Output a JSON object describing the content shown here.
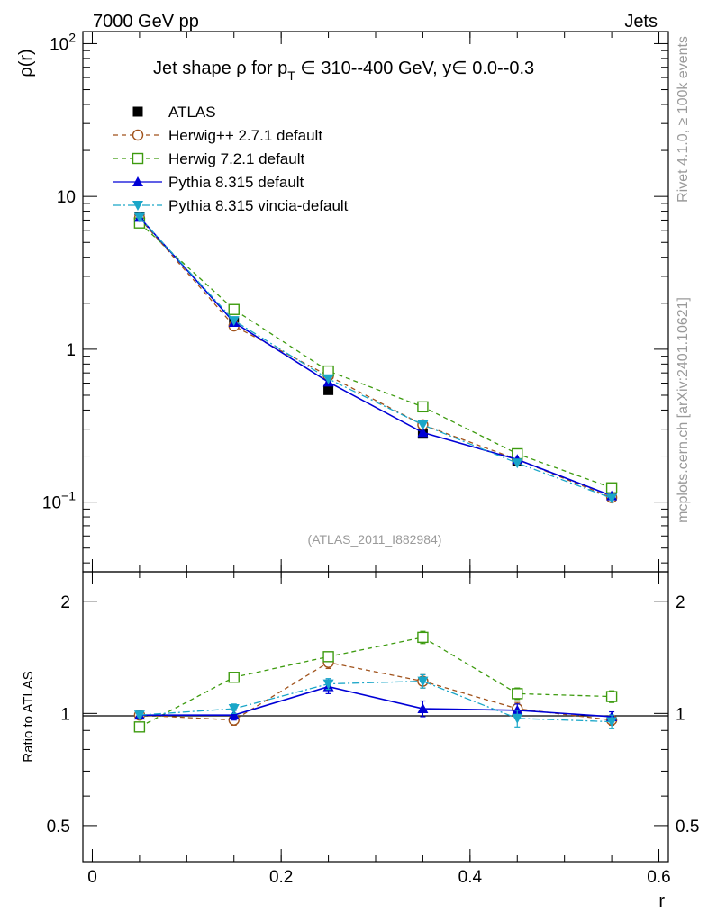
{
  "header": {
    "left": "7000 GeV pp",
    "right": "Jets"
  },
  "side_labels": {
    "rivet": "Rivet 4.1.0, ≥ 100k events",
    "mcplots": "mcplots.cern.ch [arXiv:2401.10621]"
  },
  "chart_data": [
    {
      "type": "line",
      "role": "main",
      "title_parts": {
        "prefix": "Jet shape ρ for p",
        "sub": "T",
        "suffix": " ∈ 310--400 GeV, y∈ 0.0--0.3"
      },
      "xlabel": "r",
      "ylabel": "ρ(r)",
      "yscale": "log",
      "ylim": [
        0.035,
        120
      ],
      "xlim": [
        -0.01,
        0.61
      ],
      "watermark": "(ATLAS_2011_I882984)",
      "y_tick_labels": [
        {
          "value": 0.1,
          "base": "10",
          "exp": "−1"
        },
        {
          "value": 1,
          "base": "1",
          "exp": ""
        },
        {
          "value": 10,
          "base": "10",
          "exp": ""
        },
        {
          "value": 100,
          "base": "10",
          "exp": "2"
        }
      ],
      "x": [
        0.05,
        0.15,
        0.25,
        0.35,
        0.45,
        0.55
      ],
      "series": [
        {
          "name": "ATLAS",
          "color": "#000000",
          "marker": "square-filled",
          "line": "none",
          "values": [
            7.3,
            1.5,
            0.54,
            0.28,
            0.185,
            0.112
          ]
        },
        {
          "name": "Herwig++ 2.7.1 default",
          "color": "#a0521b",
          "marker": "circle-open",
          "line": "dashed",
          "values": [
            7.2,
            1.42,
            0.67,
            0.32,
            0.19,
            0.107
          ]
        },
        {
          "name": "Herwig 7.2.1 default",
          "color": "#3d9b0f",
          "marker": "square-open",
          "line": "dashed",
          "values": [
            6.7,
            1.82,
            0.72,
            0.42,
            0.207,
            0.124
          ]
        },
        {
          "name": "Pythia 8.315 default",
          "color": "#0000d6",
          "marker": "triangle-up",
          "line": "solid",
          "values": [
            7.3,
            1.5,
            0.61,
            0.285,
            0.19,
            0.11
          ]
        },
        {
          "name": "Pythia 8.315 vincia-default",
          "color": "#1aa6c8",
          "marker": "triangle-down",
          "line": "dashdot",
          "values": [
            7.3,
            1.54,
            0.64,
            0.32,
            0.18,
            0.106
          ]
        }
      ]
    },
    {
      "type": "line",
      "role": "ratio",
      "ylabel": "Ratio to ATLAS",
      "xlabel": "r",
      "yscale": "log",
      "ylim": [
        0.4,
        2.4
      ],
      "xlim": [
        -0.01,
        0.61
      ],
      "y_ticks": [
        0.5,
        1,
        2
      ],
      "y_tick_labels": [
        "0.5",
        "1",
        "2"
      ],
      "x_ticks": [
        0,
        0.2,
        0.4,
        0.6
      ],
      "x_tick_labels": [
        "0",
        "0.2",
        "0.4",
        "0.6"
      ],
      "x": [
        0.05,
        0.15,
        0.25,
        0.35,
        0.45,
        0.55
      ],
      "series": [
        {
          "name": "Herwig++ 2.7.1 default",
          "color": "#a0521b",
          "marker": "circle-open",
          "line": "dashed",
          "values": [
            0.99,
            0.96,
            1.37,
            1.22,
            1.03,
            0.96
          ],
          "errors": [
            0.01,
            0.03,
            0.05,
            0.05,
            0.04,
            0.03
          ]
        },
        {
          "name": "Herwig 7.2.1 default",
          "color": "#3d9b0f",
          "marker": "square-open",
          "line": "dashed",
          "values": [
            0.92,
            1.25,
            1.42,
            1.6,
            1.13,
            1.11
          ],
          "errors": [
            0.01,
            0.03,
            0.04,
            0.06,
            0.04,
            0.04
          ]
        },
        {
          "name": "Pythia 8.315 default",
          "color": "#0000d6",
          "marker": "triangle-up",
          "line": "solid",
          "values": [
            0.99,
            0.99,
            1.18,
            1.03,
            1.02,
            0.98
          ],
          "errors": [
            0.01,
            0.03,
            0.05,
            0.05,
            0.04,
            0.03
          ]
        },
        {
          "name": "Pythia 8.315 vincia-default",
          "color": "#1aa6c8",
          "marker": "triangle-down",
          "line": "dashdot",
          "values": [
            0.99,
            1.03,
            1.2,
            1.22,
            0.97,
            0.95
          ],
          "errors": [
            0.01,
            0.03,
            0.04,
            0.05,
            0.05,
            0.04
          ]
        }
      ]
    }
  ]
}
